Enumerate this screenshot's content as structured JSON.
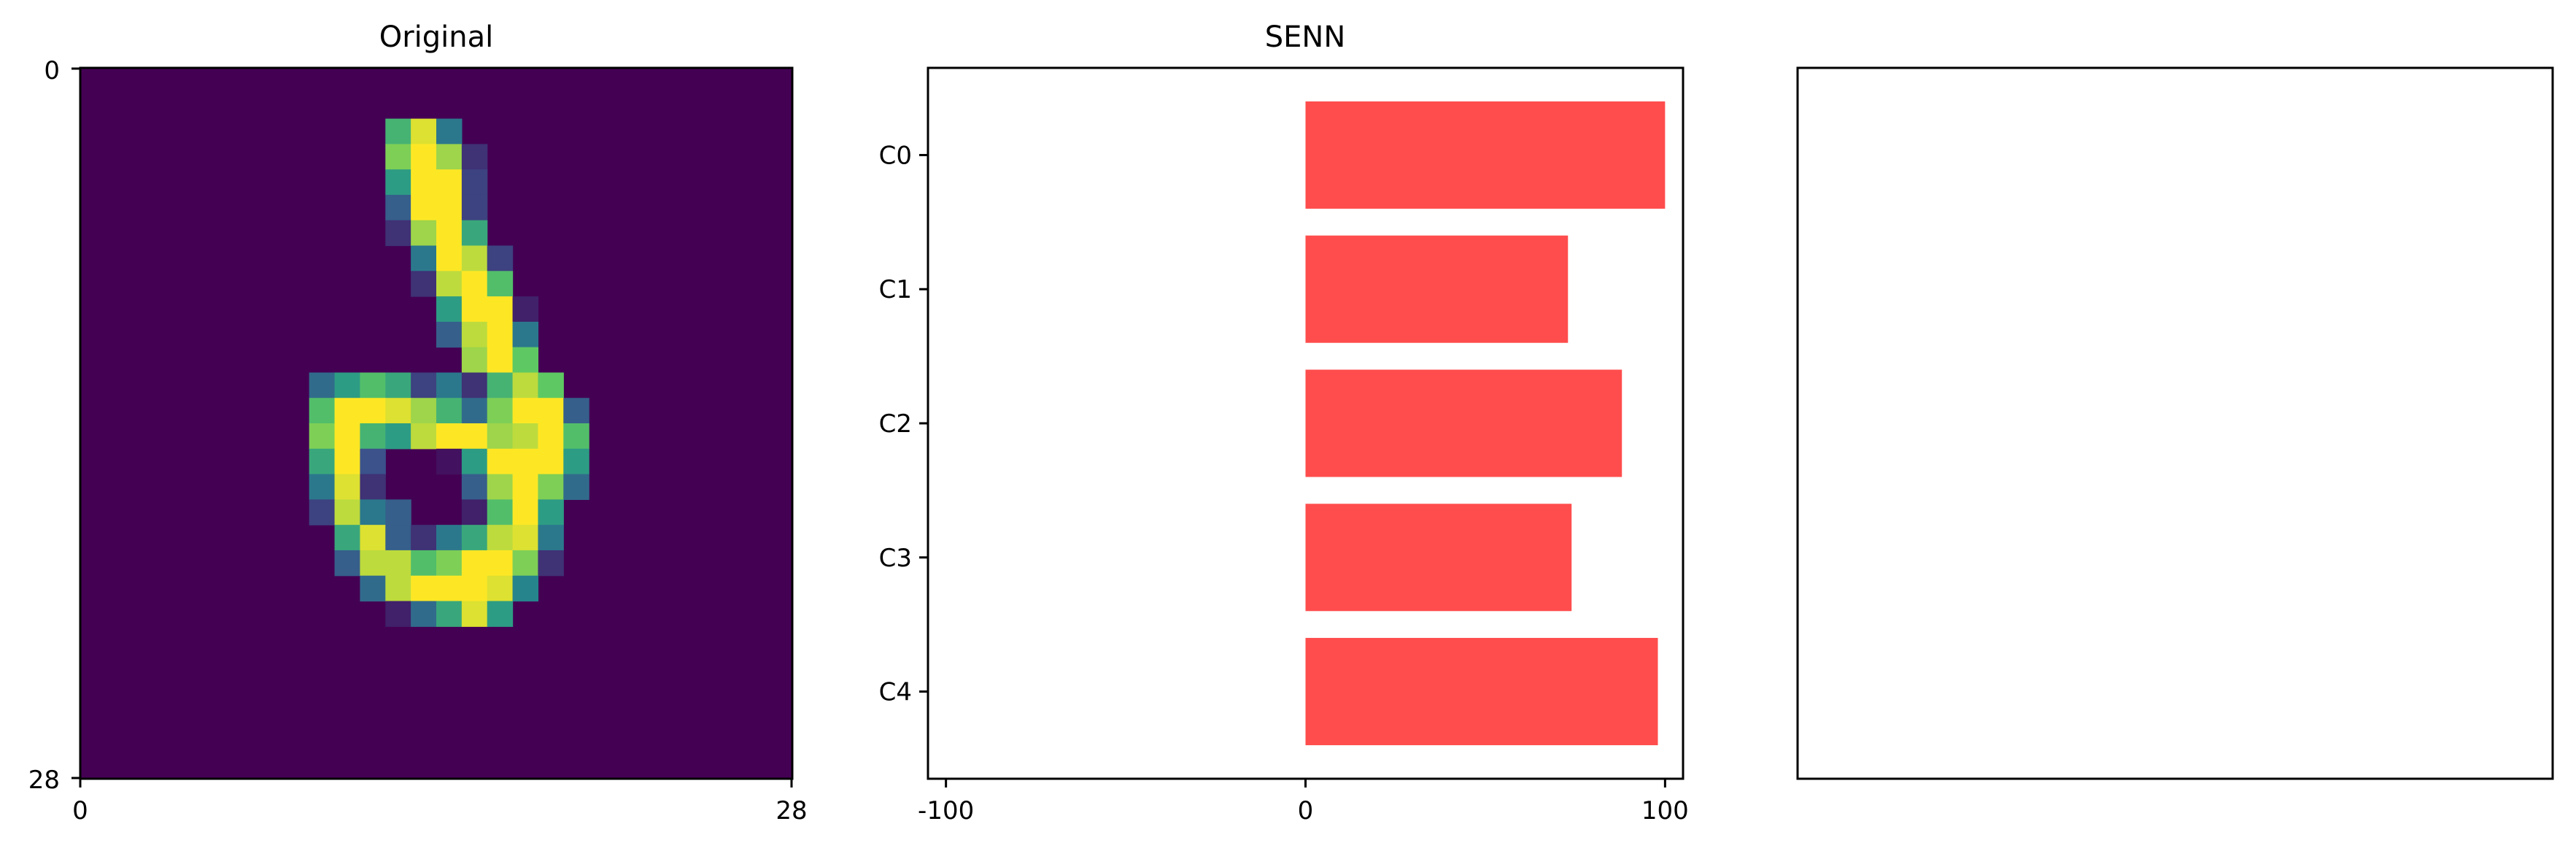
{
  "chart_data": [
    {
      "type": "heatmap",
      "title": "Original",
      "grid": false,
      "colormap": "viridis",
      "xlim": [
        0,
        28
      ],
      "ylim": [
        28,
        0
      ],
      "xticks": [
        "0",
        "28"
      ],
      "yticks": [
        "0",
        "28"
      ],
      "digit": {
        "start_row": 2,
        "start_col": 12,
        "intensity_rows": [
          [
            0.65,
            0.95,
            0.4,
            0,
            0,
            0,
            0,
            0,
            0,
            0
          ],
          [
            0.8,
            1.0,
            0.85,
            0.15,
            0,
            0,
            0,
            0,
            0,
            0
          ],
          [
            0.55,
            1.0,
            1.0,
            0.2,
            0,
            0,
            0,
            0,
            0,
            0
          ],
          [
            0.3,
            1.0,
            1.0,
            0.2,
            0,
            0,
            0,
            0,
            0,
            0
          ],
          [
            0.15,
            0.85,
            1.0,
            0.6,
            0,
            0,
            0,
            0,
            0,
            0
          ],
          [
            0,
            0.4,
            1.0,
            0.9,
            0.2,
            0,
            0,
            0,
            0,
            0
          ],
          [
            0,
            0.15,
            0.9,
            1.0,
            0.7,
            0,
            0,
            0,
            0,
            0
          ],
          [
            0,
            0,
            0.55,
            1.0,
            1.0,
            0.1,
            0,
            0,
            0,
            0
          ],
          [
            0,
            0,
            0.3,
            0.9,
            1.0,
            0.4,
            0,
            0,
            0,
            0
          ],
          [
            0,
            0,
            0,
            0.85,
            1.0,
            0.75,
            0,
            0,
            0,
            0
          ]
        ],
        "lower_rows": [
          [
            0.35,
            0.55,
            0.7,
            0.6,
            0.2,
            0.4,
            0.15,
            0.65,
            0.9,
            0.75,
            0
          ],
          [
            0.7,
            1.0,
            1.0,
            0.95,
            0.85,
            0.65,
            0.35,
            0.8,
            1.0,
            1.0,
            0.3
          ],
          [
            0.8,
            1.0,
            0.65,
            0.55,
            0.9,
            1.0,
            1.0,
            0.85,
            0.9,
            1.0,
            0.7
          ],
          [
            0.6,
            1.0,
            0.25,
            0,
            0,
            0.05,
            0.55,
            1.0,
            1.0,
            1.0,
            0.55
          ],
          [
            0.4,
            0.95,
            0.15,
            0,
            0,
            0,
            0.3,
            0.85,
            1.0,
            0.8,
            0.35
          ],
          [
            0.2,
            0.9,
            0.4,
            0.3,
            0,
            0,
            0.1,
            0.7,
            1.0,
            0.55,
            0
          ],
          [
            0,
            0.6,
            0.95,
            0.3,
            0.15,
            0.4,
            0.6,
            0.9,
            0.95,
            0.4,
            0
          ],
          [
            0,
            0.3,
            0.9,
            0.9,
            0.7,
            0.8,
            1.0,
            1.0,
            0.8,
            0.15,
            0
          ],
          [
            0,
            0,
            0.35,
            0.9,
            1.0,
            1.0,
            1.0,
            0.95,
            0.45,
            0,
            0
          ],
          [
            0,
            0,
            0,
            0.1,
            0.35,
            0.6,
            0.95,
            0.55,
            0,
            0,
            0
          ]
        ],
        "lower_start_row": 12,
        "lower_start_col": 9
      }
    },
    {
      "type": "bar",
      "orientation": "horizontal",
      "title": "SENN",
      "categories": [
        "C0",
        "C1",
        "C2",
        "C3",
        "C4"
      ],
      "values": [
        100,
        73,
        88,
        74,
        98
      ],
      "xlim": [
        -105,
        105
      ],
      "xticks": [
        "-100",
        "0",
        "100"
      ],
      "grid": false,
      "bar_color": "#ff4d4d"
    },
    {
      "type": "empty",
      "title": ""
    }
  ]
}
